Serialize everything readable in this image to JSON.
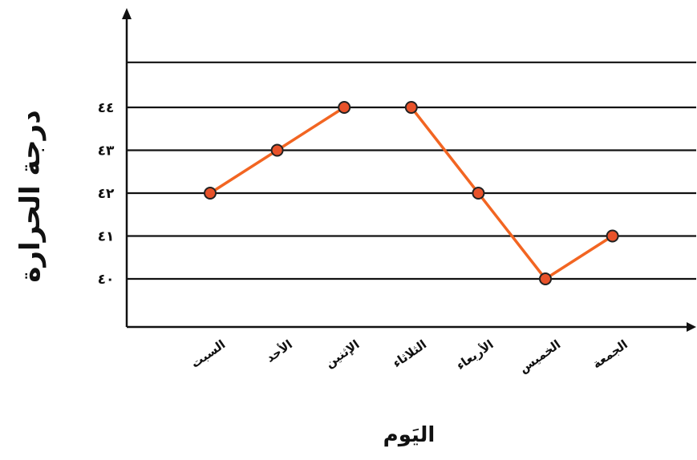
{
  "chart_data": {
    "type": "line",
    "categories": [
      "السبت",
      "الأحد",
      "الإثنين",
      "الثلاثاء",
      "الأربعاء",
      "الخميس",
      "الجمعة"
    ],
    "y_tick_labels": [
      "٤٠",
      "٤١",
      "٤٢",
      "٤٣",
      "٤٤"
    ],
    "y_ticks": [
      40,
      41,
      42,
      43,
      44
    ],
    "ylim": [
      39.2,
      45.0
    ],
    "series": [
      {
        "values": [
          42,
          43,
          44,
          null,
          null,
          null,
          null
        ]
      },
      {
        "values": [
          null,
          null,
          null,
          44,
          42,
          40,
          41
        ]
      }
    ],
    "xlabel": "اليَوم",
    "ylabel": "درجة الحرارة",
    "grid": true,
    "line_color": "#f26522",
    "marker_color": "#e8522a",
    "axis_color": "#111111"
  }
}
